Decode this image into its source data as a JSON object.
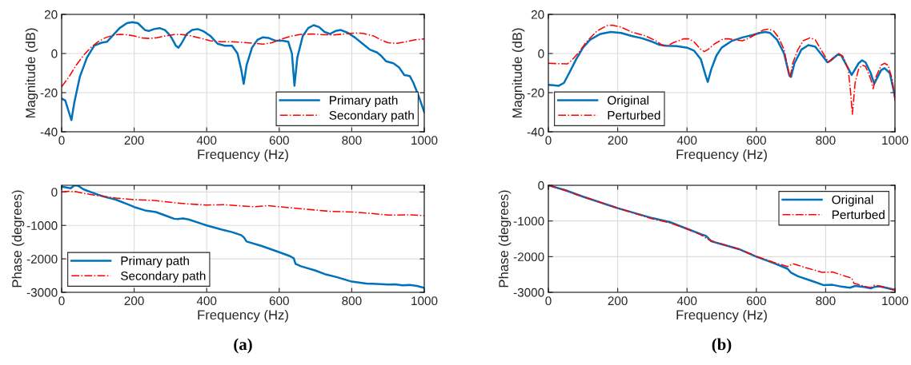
{
  "chart_data": [
    {
      "type": "line",
      "xlabel": "Frequency (Hz)",
      "ylabel": "Magnitude (dB)",
      "xlim": [
        0,
        1000
      ],
      "ylim": [
        -40,
        20
      ],
      "xticks": [
        0,
        200,
        400,
        600,
        800,
        1000
      ],
      "yticks": [
        -40,
        -20,
        0,
        20
      ],
      "grid": true,
      "legend": "bottom right",
      "series": [
        {
          "name": "Primary path",
          "color": "#0072bd",
          "line_style": "solid",
          "x": [
            0,
            10,
            20,
            27,
            35,
            50,
            70,
            90,
            110,
            125,
            140,
            160,
            180,
            195,
            210,
            230,
            240,
            255,
            270,
            285,
            300,
            315,
            322,
            330,
            345,
            360,
            375,
            390,
            410,
            430,
            450,
            470,
            485,
            495,
            502,
            510,
            525,
            540,
            555,
            570,
            590,
            610,
            625,
            635,
            642,
            650,
            665,
            680,
            695,
            710,
            725,
            740,
            755,
            770,
            790,
            810,
            830,
            850,
            870,
            880,
            895,
            915,
            930,
            945,
            960,
            970,
            985,
            1000
          ],
          "values": [
            -23,
            -24,
            -30,
            -34,
            -25,
            -12,
            -2,
            4,
            5.5,
            6,
            9,
            13,
            15.5,
            16,
            15.5,
            12,
            11.5,
            12.5,
            13,
            12,
            9,
            4,
            3,
            5,
            10,
            12,
            12.5,
            11.5,
            9,
            5,
            4,
            4,
            0,
            -8,
            -15.5,
            -6,
            3,
            7,
            8.3,
            8,
            6.5,
            6.5,
            6,
            0,
            -16.5,
            -2,
            9,
            13,
            14.5,
            13.5,
            11,
            10,
            11.5,
            12,
            10.5,
            8,
            5,
            2,
            0.5,
            -1,
            -4,
            -5,
            -7,
            -11,
            -11.5,
            -15,
            -22,
            -30
          ]
        },
        {
          "name": "Secondary path",
          "color": "#ff0000",
          "line_style": "dashed",
          "x": [
            0,
            20,
            40,
            60,
            80,
            100,
            120,
            140,
            160,
            180,
            200,
            220,
            240,
            260,
            280,
            310,
            330,
            350,
            380,
            410,
            440,
            470,
            500,
            530,
            555,
            580,
            600,
            630,
            660,
            690,
            720,
            750,
            780,
            810,
            830,
            860,
            880,
            900,
            925,
            950,
            975,
            1000
          ],
          "values": [
            -17,
            -12,
            -6,
            -1,
            3,
            6,
            8,
            9.3,
            9.8,
            9.6,
            9,
            8,
            7.7,
            8,
            8.8,
            9.7,
            9.7,
            9.3,
            8,
            6.5,
            6,
            6,
            5.7,
            5.2,
            4.8,
            5.5,
            7,
            8.8,
            9.8,
            10,
            9.6,
            9.5,
            10,
            10.5,
            10.3,
            9,
            7,
            5.5,
            5.2,
            6,
            7,
            7.5
          ]
        }
      ]
    },
    {
      "type": "line",
      "xlabel": "Frequency (Hz)",
      "ylabel": "Magnitude (dB)",
      "xlim": [
        0,
        1000
      ],
      "ylim": [
        -40,
        20
      ],
      "xticks": [
        0,
        200,
        400,
        600,
        800,
        1000
      ],
      "yticks": [
        -40,
        -20,
        0,
        20
      ],
      "grid": true,
      "legend": "bottom left",
      "series": [
        {
          "name": "Original",
          "color": "#0072bd",
          "line_style": "solid",
          "x": [
            0,
            15,
            30,
            45,
            60,
            80,
            100,
            120,
            150,
            180,
            210,
            240,
            270,
            300,
            320,
            340,
            370,
            400,
            420,
            440,
            455,
            460,
            470,
            485,
            500,
            530,
            560,
            590,
            610,
            625,
            640,
            660,
            680,
            695,
            700,
            710,
            730,
            750,
            770,
            790,
            805,
            815,
            835,
            845,
            860,
            875,
            885,
            895,
            905,
            915,
            930,
            940,
            950,
            960,
            970,
            985,
            1000
          ],
          "values": [
            -16,
            -16.2,
            -16.5,
            -15,
            -10,
            -3,
            3,
            7,
            10,
            11,
            10.5,
            9,
            7.8,
            6,
            4.5,
            4,
            3.8,
            3,
            1.5,
            -3,
            -12,
            -14.5,
            -8,
            -1,
            3,
            6.5,
            8.2,
            9.5,
            10.5,
            11,
            10.5,
            7,
            0,
            -11,
            -12,
            -5,
            2,
            4.3,
            3.5,
            -1,
            -4.5,
            -3.5,
            -0.5,
            -1,
            -6,
            -11,
            -8,
            -5,
            -3.5,
            -4.5,
            -10,
            -15.5,
            -12,
            -8.5,
            -7.5,
            -10,
            -22
          ]
        },
        {
          "name": "Perturbed",
          "color": "#ff0000",
          "line_style": "dashed",
          "x": [
            0,
            30,
            55,
            70,
            90,
            110,
            140,
            170,
            185,
            210,
            240,
            280,
            310,
            330,
            340,
            360,
            390,
            405,
            420,
            440,
            450,
            460,
            480,
            505,
            520,
            540,
            560,
            580,
            600,
            620,
            635,
            650,
            665,
            680,
            697,
            705,
            720,
            735,
            755,
            770,
            790,
            808,
            820,
            838,
            850,
            865,
            872,
            877,
            885,
            895,
            905,
            915,
            930,
            937,
            945,
            960,
            970,
            980,
            992,
            1000
          ],
          "values": [
            -5,
            -5.2,
            -5.3,
            -3,
            1,
            6,
            11.5,
            14.3,
            14.5,
            13.5,
            11,
            9,
            6.5,
            4,
            3.6,
            5.5,
            7.5,
            7.5,
            6,
            2,
            1,
            2,
            5,
            7.5,
            7.5,
            7,
            6.5,
            8,
            10,
            12,
            12.5,
            11.5,
            8,
            2,
            -12.5,
            -5,
            2,
            6.5,
            8,
            7,
            1,
            -4.5,
            -2.5,
            0,
            -1.5,
            -8,
            -20,
            -31,
            -15,
            -8,
            -6,
            -6.5,
            -13,
            -18,
            -12,
            -6,
            -5,
            -6,
            -13,
            -24
          ]
        }
      ]
    },
    {
      "type": "line",
      "xlabel": "Frequency (Hz)",
      "ylabel": "Phase (degrees)",
      "xlim": [
        0,
        1000
      ],
      "ylim": [
        -3000,
        200
      ],
      "xticks": [
        0,
        200,
        400,
        600,
        800,
        1000
      ],
      "yticks": [
        -3000,
        -2000,
        -1000,
        0
      ],
      "grid": true,
      "legend": "bottom left",
      "annotations": [
        "(a)"
      ],
      "series": [
        {
          "name": "Primary path",
          "color": "#0072bd",
          "line_style": "solid",
          "x": [
            0,
            10,
            25,
            35,
            45,
            60,
            80,
            100,
            120,
            150,
            180,
            200,
            230,
            260,
            290,
            310,
            320,
            335,
            350,
            400,
            440,
            470,
            495,
            502,
            510,
            550,
            600,
            630,
            640,
            645,
            660,
            700,
            730,
            760,
            800,
            840,
            870,
            900,
            920,
            940,
            960,
            980,
            1000
          ],
          "values": [
            160,
            140,
            110,
            200,
            190,
            80,
            0,
            -80,
            -150,
            -230,
            -360,
            -450,
            -550,
            -600,
            -720,
            -800,
            -810,
            -790,
            -820,
            -1000,
            -1120,
            -1200,
            -1290,
            -1350,
            -1480,
            -1610,
            -1800,
            -1920,
            -1980,
            -2150,
            -2220,
            -2350,
            -2470,
            -2550,
            -2680,
            -2740,
            -2750,
            -2770,
            -2760,
            -2790,
            -2780,
            -2810,
            -2870
          ]
        },
        {
          "name": "Secondary path",
          "color": "#ff0000",
          "line_style": "dashed",
          "x": [
            0,
            20,
            40,
            60,
            100,
            150,
            200,
            250,
            300,
            350,
            400,
            450,
            500,
            530,
            570,
            600,
            650,
            700,
            740,
            780,
            820,
            860,
            900,
            930,
            960,
            1000
          ],
          "values": [
            0,
            20,
            10,
            -40,
            -110,
            -180,
            -230,
            -250,
            -310,
            -360,
            -390,
            -380,
            -420,
            -440,
            -410,
            -440,
            -490,
            -540,
            -580,
            -590,
            -610,
            -650,
            -690,
            -690,
            -680,
            -710
          ]
        }
      ]
    },
    {
      "type": "line",
      "xlabel": "Frequency (Hz)",
      "ylabel": "Phase (degrees)",
      "xlim": [
        0,
        1000
      ],
      "ylim": [
        -3000,
        0
      ],
      "xticks": [
        0,
        200,
        400,
        600,
        800,
        1000
      ],
      "yticks": [
        -3000,
        -2000,
        -1000,
        0
      ],
      "grid": true,
      "legend": "top right",
      "annotations": [
        "(b)"
      ],
      "series": [
        {
          "name": "Original",
          "color": "#0072bd",
          "line_style": "solid",
          "x": [
            0,
            50,
            100,
            200,
            300,
            350,
            400,
            440,
            455,
            470,
            500,
            550,
            600,
            650,
            690,
            700,
            720,
            760,
            795,
            820,
            845,
            870,
            885,
            910,
            930,
            940,
            955,
            1000
          ],
          "values": [
            0,
            -140,
            -320,
            -640,
            -920,
            -1030,
            -1220,
            -1370,
            -1420,
            -1570,
            -1650,
            -1790,
            -2000,
            -2180,
            -2340,
            -2450,
            -2550,
            -2680,
            -2800,
            -2790,
            -2840,
            -2870,
            -2820,
            -2850,
            -2890,
            -2850,
            -2830,
            -2930
          ]
        },
        {
          "name": "Perturbed",
          "color": "#ff0000",
          "line_style": "dashed",
          "x": [
            0,
            50,
            100,
            200,
            300,
            350,
            400,
            440,
            460,
            480,
            550,
            600,
            650,
            690,
            705,
            740,
            790,
            820,
            860,
            875,
            882,
            900,
            930,
            940,
            970,
            1000
          ],
          "values": [
            0,
            -150,
            -320,
            -640,
            -940,
            -1050,
            -1220,
            -1390,
            -1510,
            -1590,
            -1790,
            -1990,
            -2160,
            -2280,
            -2200,
            -2300,
            -2440,
            -2430,
            -2560,
            -2600,
            -2750,
            -2800,
            -2870,
            -2800,
            -2850,
            -2950
          ]
        }
      ]
    }
  ]
}
